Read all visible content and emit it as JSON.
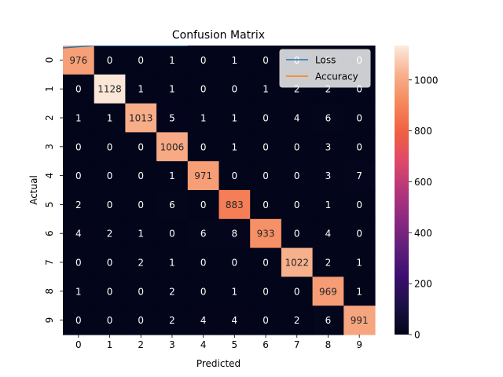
{
  "chart_data": {
    "type": "heatmap",
    "title": "Confusion Matrix",
    "xlabel": "Predicted",
    "ylabel": "Actual",
    "x_categories": [
      "0",
      "1",
      "2",
      "3",
      "4",
      "5",
      "6",
      "7",
      "8",
      "9"
    ],
    "y_categories": [
      "0",
      "1",
      "2",
      "3",
      "4",
      "5",
      "6",
      "7",
      "8",
      "9"
    ],
    "values": [
      [
        976,
        0,
        0,
        1,
        0,
        1,
        0,
        0,
        0,
        0
      ],
      [
        0,
        1128,
        1,
        1,
        0,
        0,
        1,
        2,
        2,
        0
      ],
      [
        1,
        1,
        1013,
        5,
        1,
        1,
        0,
        4,
        6,
        0
      ],
      [
        0,
        0,
        0,
        1006,
        0,
        1,
        0,
        0,
        3,
        0
      ],
      [
        0,
        0,
        0,
        1,
        971,
        0,
        0,
        0,
        3,
        7
      ],
      [
        2,
        0,
        0,
        6,
        0,
        883,
        0,
        0,
        1,
        0
      ],
      [
        4,
        2,
        1,
        0,
        6,
        8,
        933,
        0,
        4,
        0
      ],
      [
        0,
        0,
        2,
        1,
        0,
        0,
        0,
        1022,
        2,
        1
      ],
      [
        1,
        0,
        0,
        2,
        0,
        1,
        0,
        0,
        969,
        1
      ],
      [
        0,
        0,
        0,
        2,
        4,
        4,
        0,
        2,
        6,
        991
      ]
    ],
    "colorbar": {
      "min": 0,
      "max": 1135,
      "ticks": [
        0,
        200,
        400,
        600,
        800,
        1000
      ]
    },
    "colormap": "rocket",
    "legend": {
      "placement": "upper-right",
      "entries": [
        {
          "name": "Loss",
          "color": "#1f77b4"
        },
        {
          "name": "Accuracy",
          "color": "#ff7f0e"
        }
      ]
    },
    "loss_line": {
      "x": [
        -0.5,
        0.5,
        3.5
      ],
      "y": [
        -0.42,
        -0.5,
        -0.5
      ],
      "color": "#1f77b4"
    }
  }
}
